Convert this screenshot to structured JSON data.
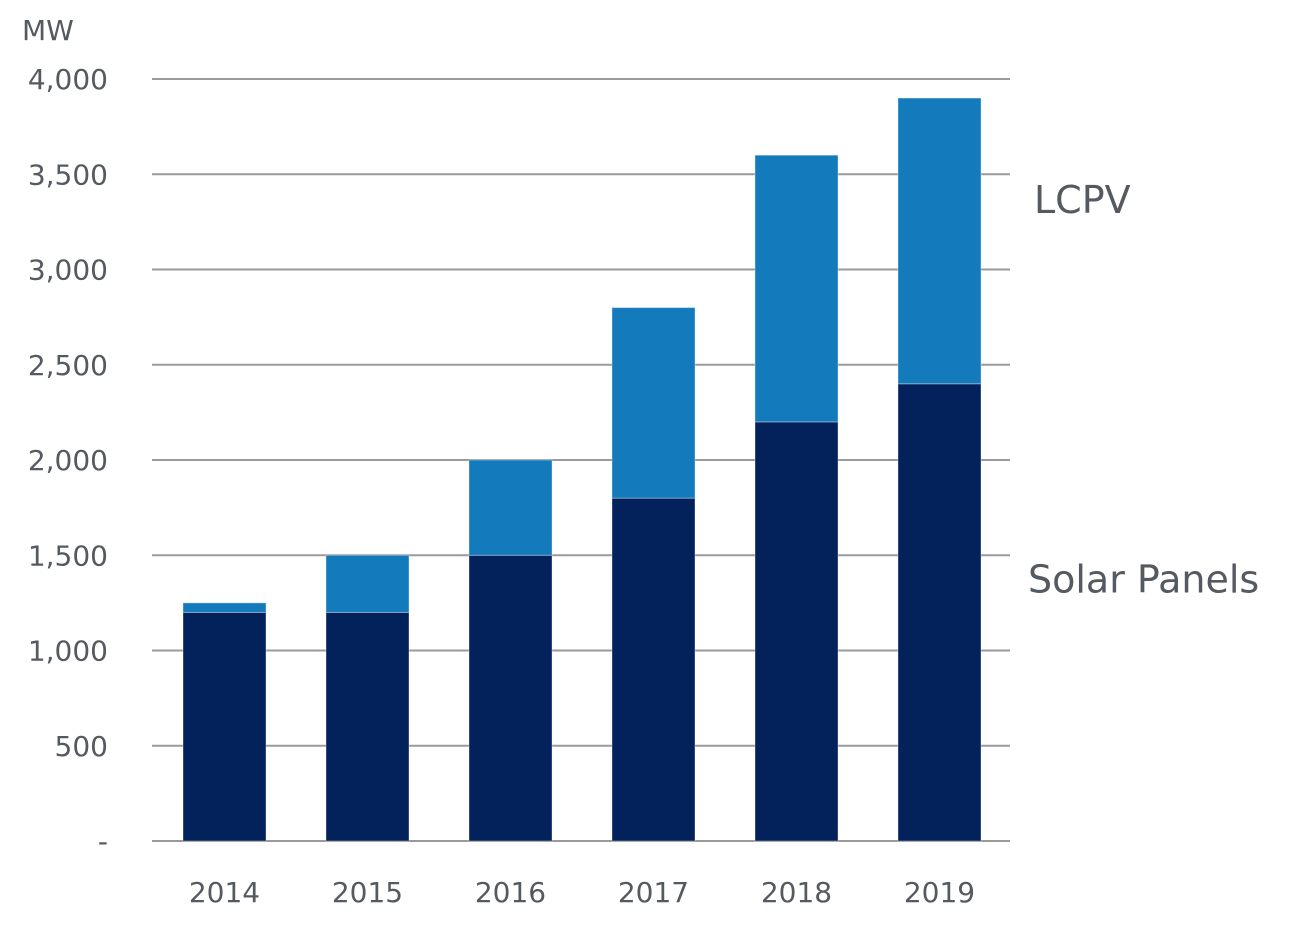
{
  "chart_data": {
    "type": "bar",
    "stacked": true,
    "title": "",
    "ylabel": "MW",
    "xlabel": "",
    "ylim": [
      0,
      4000
    ],
    "yticks": [
      0,
      500,
      1000,
      1500,
      2000,
      2500,
      3000,
      3500,
      4000
    ],
    "ytick_labels": [
      "-",
      "500",
      "1,000",
      "1,500",
      "2,000",
      "2,500",
      "3,000",
      "3,500",
      "4,000"
    ],
    "grid": true,
    "categories": [
      "2014",
      "2015",
      "2016",
      "2017",
      "2018",
      "2019"
    ],
    "series": [
      {
        "name": "Solar Panels",
        "color": "#03215b",
        "values": [
          1200,
          1200,
          1500,
          1800,
          2200,
          2400
        ]
      },
      {
        "name": "LCPV",
        "color": "#137abb",
        "values": [
          50,
          300,
          500,
          1000,
          1400,
          1500
        ]
      }
    ],
    "legend": "right, inline labels next to last bar"
  }
}
